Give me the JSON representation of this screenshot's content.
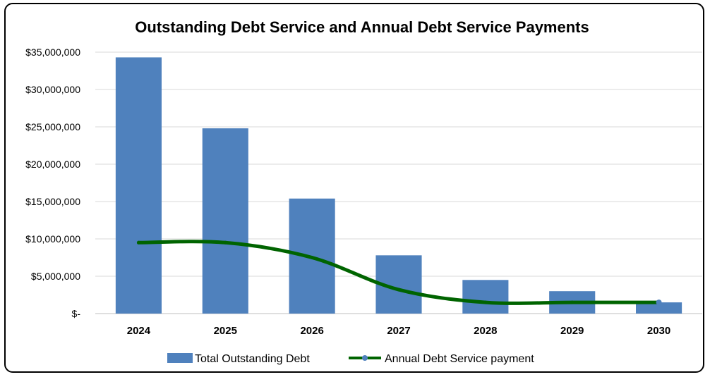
{
  "chart_data": {
    "type": "bar",
    "title": "Outstanding Debt Service and Annual Debt Service Payments",
    "categories": [
      "2024",
      "2025",
      "2026",
      "2027",
      "2028",
      "2029",
      "2030"
    ],
    "ylim": [
      0,
      35000000
    ],
    "yticks": [
      0,
      5000000,
      10000000,
      15000000,
      20000000,
      25000000,
      30000000,
      35000000
    ],
    "ytick_labels": [
      "$-",
      "$5,000,000",
      "$10,000,000",
      "$15,000,000",
      "$20,000,000",
      "$25,000,000",
      "$30,000,000",
      "$35,000,000"
    ],
    "grid": true,
    "legend_position": "bottom",
    "series": [
      {
        "name": "Total Outstanding Debt",
        "type": "bar",
        "color": "#4F81BD",
        "values": [
          34300000,
          24800000,
          15400000,
          7800000,
          4500000,
          3000000,
          1500000
        ]
      },
      {
        "name": "Annual Debt Service payment",
        "type": "line",
        "color": "#006400",
        "values": [
          9500000,
          9500000,
          7500000,
          3200000,
          1500000,
          1500000,
          1500000
        ]
      }
    ]
  }
}
